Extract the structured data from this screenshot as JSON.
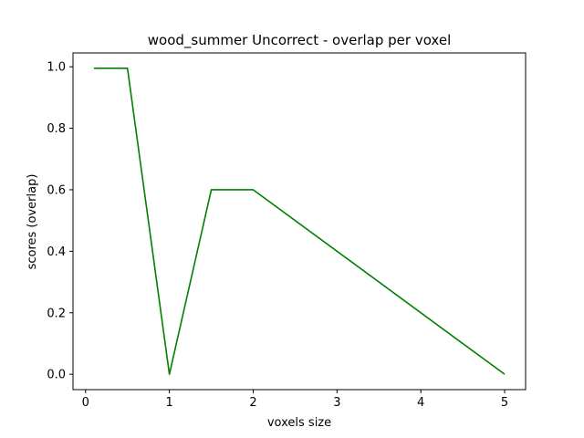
{
  "chart_data": {
    "type": "line",
    "title": "wood_summer Uncorrect - overlap per voxel",
    "xlabel": "voxels size",
    "ylabel": "scores (overlap)",
    "xlim": [
      -0.15,
      5.25
    ],
    "ylim": [
      -0.05,
      1.045
    ],
    "xticks": [
      0,
      1,
      2,
      3,
      4,
      5
    ],
    "yticks": [
      0.0,
      0.2,
      0.4,
      0.6,
      0.8,
      1.0
    ],
    "xtick_labels": [
      "0",
      "1",
      "2",
      "3",
      "4",
      "5"
    ],
    "ytick_labels": [
      "0.0",
      "0.2",
      "0.4",
      "0.6",
      "0.8",
      "1.0"
    ],
    "grid": false,
    "series": [
      {
        "color": "#008000",
        "x": [
          0.1,
          0.5,
          1.0,
          1.5,
          2.0,
          5.0
        ],
        "y": [
          0.995,
          0.995,
          0.0,
          0.6,
          0.6,
          0.0
        ]
      }
    ]
  }
}
